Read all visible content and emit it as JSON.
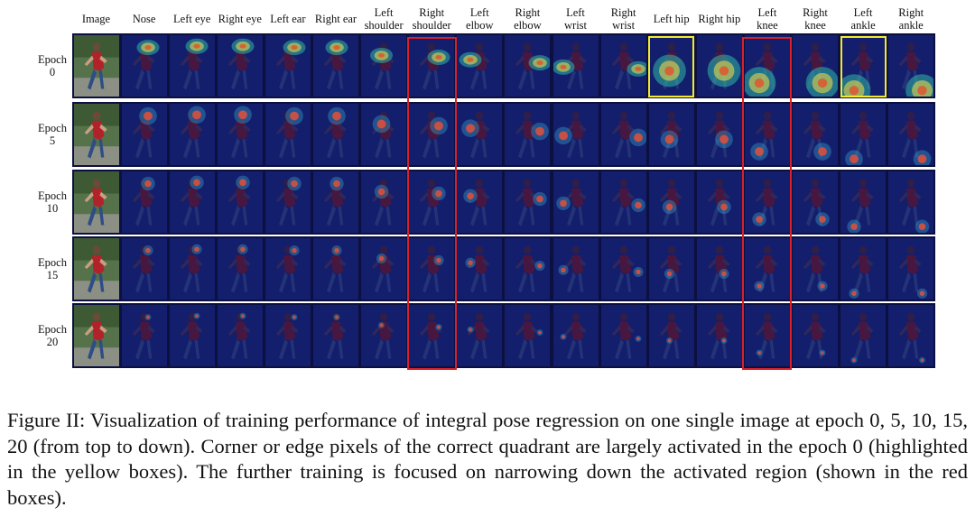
{
  "columns": [
    "Image",
    "Nose",
    "Left eye",
    "Right eye",
    "Left ear",
    "Right ear",
    "Left\nshoulder",
    "Right\nshoulder",
    "Left\nelbow",
    "Right\nelbow",
    "Left\nwrist",
    "Right\nwrist",
    "Left hip",
    "Right hip",
    "Left\nknee",
    "Right\nknee",
    "Left\nankle",
    "Right\nankle"
  ],
  "rows": [
    "Epoch\n0",
    "Epoch\n5",
    "Epoch\n10",
    "Epoch\n15",
    "Epoch\n20"
  ],
  "highlights": {
    "red_columns": [
      "Right\nshoulder",
      "Left\nknee"
    ],
    "yellow": [
      {
        "row": "Epoch\n0",
        "column": "Left hip"
      },
      {
        "row": "Epoch\n0",
        "column": "Left\nankle"
      }
    ]
  },
  "colors": {
    "red_box": "#d8212a",
    "yellow_box": "#f3ea2e",
    "heatmap_bg": "#1d2a7a"
  },
  "caption": "Figure II: Visualization of training performance of integral pose regression on one single image at epoch 0, 5, 10, 15, 20 (from top to down). Corner or edge pixels of the correct quadrant are largely activated in the epoch 0 (highlighted in the yellow boxes). The further training is focused on narrowing down the activated region (shown in the red boxes)."
}
